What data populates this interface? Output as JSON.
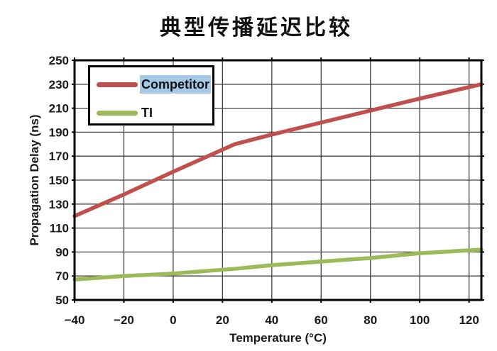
{
  "title": "典型传播延迟比较",
  "colors": {
    "competitor_line": "#C0504D",
    "ti_line": "#9BBB59",
    "grid": "#404040",
    "plot_border": "#000000",
    "text": "#1a1a1a",
    "selection_highlight": "#A6C9E8",
    "background": "#ffffff"
  },
  "chart_data": {
    "type": "line",
    "title": "典型传播延迟比较",
    "xlabel": "Temperature (°C)",
    "ylabel": "Propagation Delay (ns)",
    "xlim": [
      -40,
      125
    ],
    "ylim": [
      50,
      250
    ],
    "x_ticks": [
      -40,
      -20,
      0,
      20,
      40,
      60,
      80,
      100,
      120
    ],
    "y_ticks": [
      50,
      70,
      90,
      110,
      130,
      150,
      170,
      190,
      210,
      230,
      250
    ],
    "grid": true,
    "legend_position": "top-left",
    "x": [
      -40,
      -20,
      0,
      25,
      40,
      60,
      80,
      100,
      125
    ],
    "series": [
      {
        "name": "Competitor",
        "color": "#C0504D",
        "values": [
          120,
          138,
          157,
          180,
          188,
          198,
          208,
          218,
          230
        ],
        "label_text_selected": true
      },
      {
        "name": "TI",
        "color": "#9BBB59",
        "values": [
          67,
          70,
          72,
          76,
          79,
          82,
          85,
          89,
          92
        ],
        "label_text_selected": false
      }
    ]
  }
}
